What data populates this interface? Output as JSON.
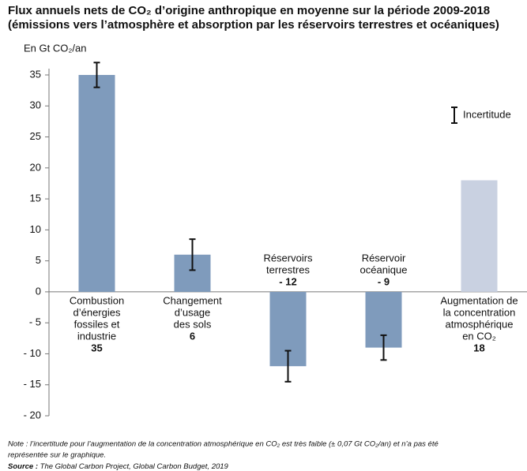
{
  "chart_data": {
    "type": "bar",
    "title": [
      "Flux annuels nets de CO₂ d’origine anthropique en moyenne sur la période 2009-2018",
      "(émissions vers l’atmosphère et absorption par les réservoirs terrestres et océaniques)"
    ],
    "y_label": "En Gt CO₂/an",
    "categories": [
      [
        "Combustion",
        "d’énergies",
        "fossiles et",
        "industrie"
      ],
      [
        "Changement",
        "d’usage",
        "des sols"
      ],
      [
        "Réservoirs",
        "terrestres"
      ],
      [
        "Réservoir",
        "océanique"
      ],
      [
        "Augmentation de",
        "la concentration",
        "atmosphérique",
        "en CO₂"
      ]
    ],
    "values": [
      35,
      6,
      -12,
      -9,
      18
    ],
    "value_labels": [
      "35",
      "6",
      "- 12",
      "- 9",
      "18"
    ],
    "errors": [
      2,
      2.5,
      2.5,
      2,
      null
    ],
    "colors": [
      "#7f9bbc",
      "#7f9bbc",
      "#7f9bbc",
      "#7f9bbc",
      "#c9d1e1"
    ],
    "legend": "Incertitude",
    "ylim": [
      -20,
      35
    ],
    "yticks": [
      35,
      30,
      25,
      20,
      15,
      10,
      5,
      0,
      {
        "value": -5,
        "label": "- 5"
      },
      {
        "value": -10,
        "label": "- 10"
      },
      {
        "value": -15,
        "label": "- 15"
      },
      {
        "value": -20,
        "label": "- 20"
      }
    ],
    "note": [
      "Note : l’incertitude pour l’augmentation de la concentration atmosphérique en CO₂ est très faible (± 0,07 Gt CO₂/an) et n’a pas été",
      "représentée sur le graphique."
    ],
    "source_label": "Source :",
    "source": "The Global Carbon Project, Global Carbon Budget, 2019"
  }
}
